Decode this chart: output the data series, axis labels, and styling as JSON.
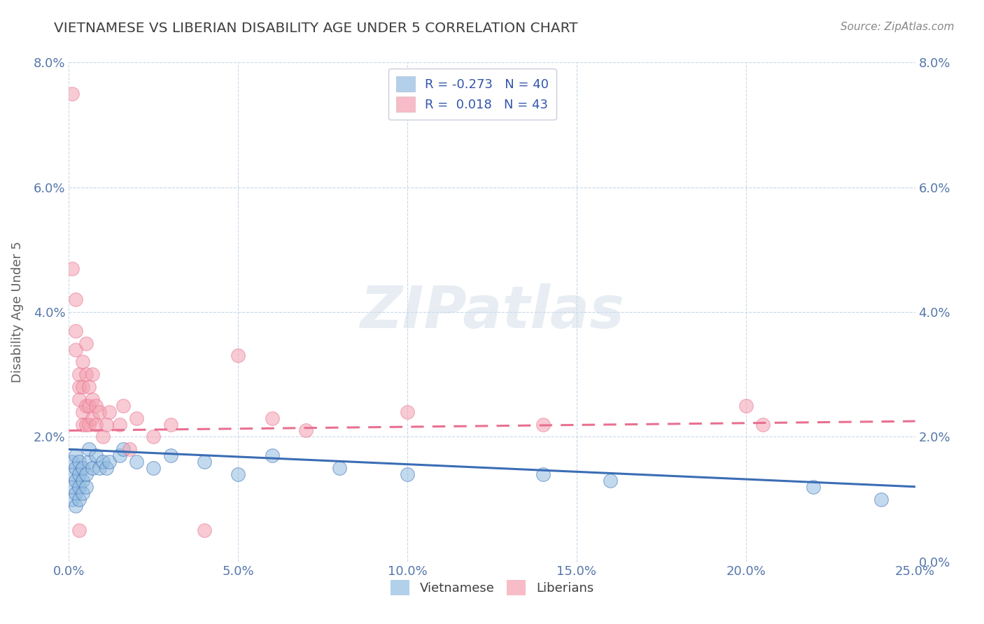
{
  "title": "VIETNAMESE VS LIBERIAN DISABILITY AGE UNDER 5 CORRELATION CHART",
  "source": "Source: ZipAtlas.com",
  "ylabel_label": "Disability Age Under 5",
  "xlim": [
    0.0,
    0.25
  ],
  "ylim": [
    0.0,
    0.08
  ],
  "legend_bottom": [
    "Vietnamese",
    "Liberians"
  ],
  "viet_color": "#92bce0",
  "lib_color": "#f4a0b0",
  "viet_line_color": "#3b6db5",
  "lib_line_color": "#e87090",
  "viet_scatter": [
    [
      0.001,
      0.01
    ],
    [
      0.001,
      0.012
    ],
    [
      0.001,
      0.014
    ],
    [
      0.001,
      0.016
    ],
    [
      0.002,
      0.009
    ],
    [
      0.002,
      0.011
    ],
    [
      0.002,
      0.013
    ],
    [
      0.002,
      0.015
    ],
    [
      0.002,
      0.017
    ],
    [
      0.003,
      0.01
    ],
    [
      0.003,
      0.012
    ],
    [
      0.003,
      0.014
    ],
    [
      0.003,
      0.016
    ],
    [
      0.004,
      0.011
    ],
    [
      0.004,
      0.013
    ],
    [
      0.004,
      0.015
    ],
    [
      0.005,
      0.012
    ],
    [
      0.005,
      0.014
    ],
    [
      0.006,
      0.016
    ],
    [
      0.006,
      0.018
    ],
    [
      0.007,
      0.015
    ],
    [
      0.008,
      0.017
    ],
    [
      0.009,
      0.015
    ],
    [
      0.01,
      0.016
    ],
    [
      0.011,
      0.015
    ],
    [
      0.012,
      0.016
    ],
    [
      0.015,
      0.017
    ],
    [
      0.016,
      0.018
    ],
    [
      0.02,
      0.016
    ],
    [
      0.025,
      0.015
    ],
    [
      0.03,
      0.017
    ],
    [
      0.04,
      0.016
    ],
    [
      0.05,
      0.014
    ],
    [
      0.06,
      0.017
    ],
    [
      0.08,
      0.015
    ],
    [
      0.1,
      0.014
    ],
    [
      0.14,
      0.014
    ],
    [
      0.16,
      0.013
    ],
    [
      0.22,
      0.012
    ],
    [
      0.24,
      0.01
    ]
  ],
  "lib_scatter": [
    [
      0.001,
      0.075
    ],
    [
      0.001,
      0.047
    ],
    [
      0.002,
      0.042
    ],
    [
      0.002,
      0.037
    ],
    [
      0.002,
      0.034
    ],
    [
      0.003,
      0.03
    ],
    [
      0.003,
      0.028
    ],
    [
      0.003,
      0.026
    ],
    [
      0.003,
      0.005
    ],
    [
      0.004,
      0.032
    ],
    [
      0.004,
      0.028
    ],
    [
      0.004,
      0.024
    ],
    [
      0.004,
      0.022
    ],
    [
      0.005,
      0.035
    ],
    [
      0.005,
      0.03
    ],
    [
      0.005,
      0.025
    ],
    [
      0.005,
      0.022
    ],
    [
      0.006,
      0.028
    ],
    [
      0.006,
      0.025
    ],
    [
      0.006,
      0.022
    ],
    [
      0.007,
      0.03
    ],
    [
      0.007,
      0.026
    ],
    [
      0.007,
      0.023
    ],
    [
      0.008,
      0.025
    ],
    [
      0.008,
      0.022
    ],
    [
      0.009,
      0.024
    ],
    [
      0.01,
      0.02
    ],
    [
      0.011,
      0.022
    ],
    [
      0.012,
      0.024
    ],
    [
      0.015,
      0.022
    ],
    [
      0.016,
      0.025
    ],
    [
      0.018,
      0.018
    ],
    [
      0.02,
      0.023
    ],
    [
      0.025,
      0.02
    ],
    [
      0.03,
      0.022
    ],
    [
      0.04,
      0.005
    ],
    [
      0.05,
      0.033
    ],
    [
      0.06,
      0.023
    ],
    [
      0.07,
      0.021
    ],
    [
      0.1,
      0.024
    ],
    [
      0.14,
      0.022
    ],
    [
      0.2,
      0.025
    ],
    [
      0.205,
      0.022
    ]
  ],
  "background_color": "#ffffff",
  "grid_color": "#c8d8e8",
  "title_color": "#404040",
  "axis_label_color": "#606060",
  "tick_color": "#5577aa",
  "watermark_color": "#d0dce8",
  "legend_r_color": "#3355aa"
}
